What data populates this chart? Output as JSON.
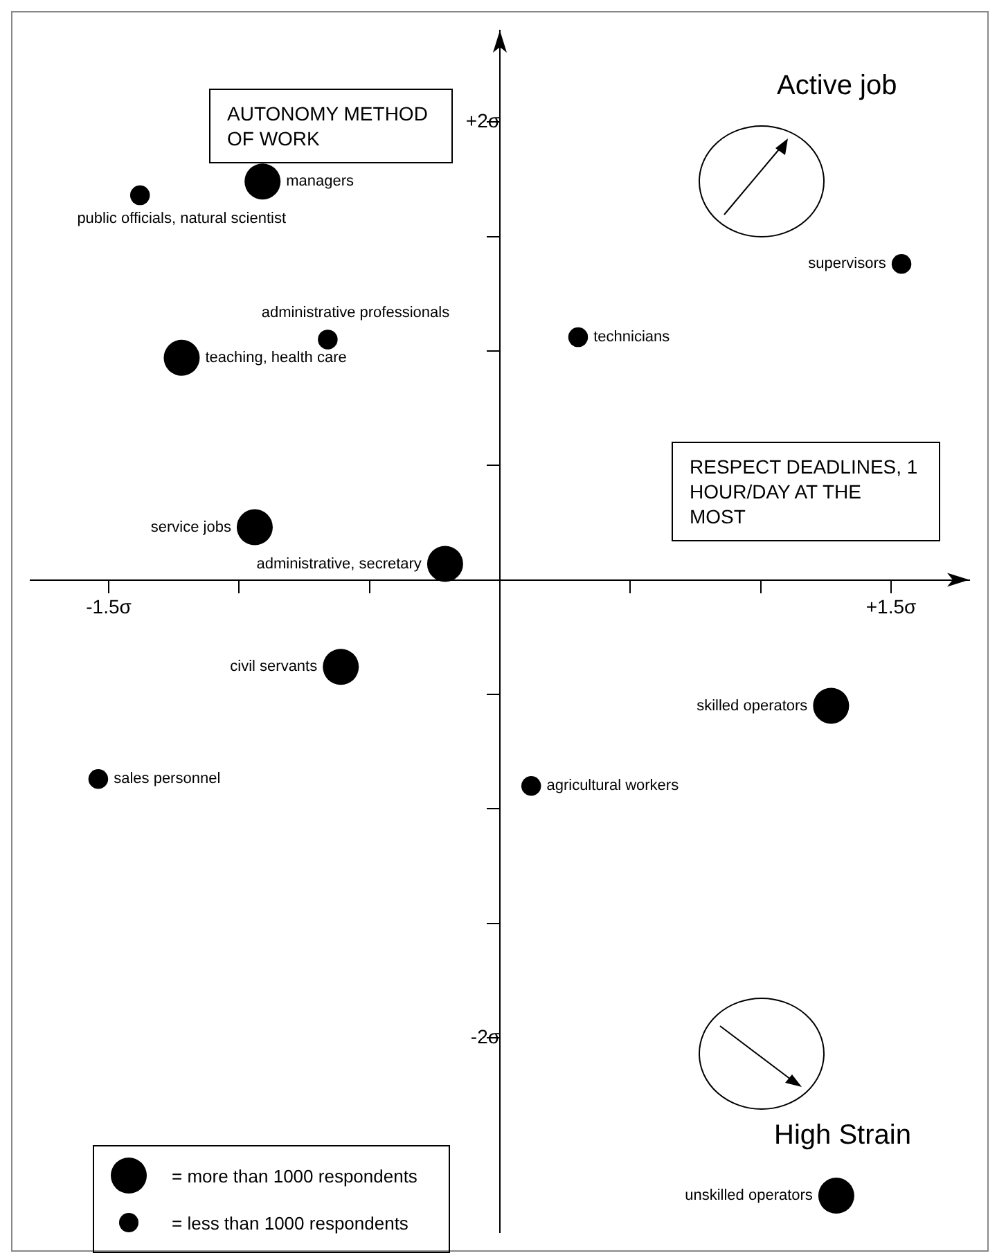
{
  "chart_data": {
    "type": "bubble",
    "xlabel": "RESPECT DEADLINES, 1 HOUR/DAY AT THE MOST",
    "ylabel": "AUTONOMY METHOD OF WORK",
    "x": [
      -0.91,
      -1.38,
      -0.66,
      -1.22,
      0.3,
      1.54,
      -0.94,
      -0.21,
      -0.61,
      1.27,
      -1.54,
      0.12,
      1.29
    ],
    "values": [
      1.74,
      1.68,
      1.05,
      0.97,
      1.06,
      1.38,
      0.23,
      0.07,
      -0.38,
      -0.55,
      -0.87,
      -0.9,
      -2.69
    ],
    "sizes": [
      1,
      0.3,
      0.3,
      1,
      0.3,
      0.3,
      1,
      1,
      1,
      1,
      0.3,
      0.3,
      1
    ],
    "color": "#000000",
    "xlim": [
      -1.8,
      1.8
    ],
    "ylim": [
      -2.85,
      2.4
    ],
    "xticks": [
      {
        "value": -1.5,
        "label": "-1.5σ"
      },
      {
        "value": -1,
        "label": null
      },
      {
        "value": -0.5,
        "label": null
      },
      {
        "value": 0.5,
        "label": null
      },
      {
        "value": 1,
        "label": null
      },
      {
        "value": 1.5,
        "label": "+1.5σ"
      }
    ],
    "yticks": [
      {
        "value": -2,
        "label": "-2σ"
      },
      {
        "value": -1.5,
        "label": null
      },
      {
        "value": -1,
        "label": null
      },
      {
        "value": -0.5,
        "label": null
      },
      {
        "value": 0.5,
        "label": null
      },
      {
        "value": 1,
        "label": null
      },
      {
        "value": 1.5,
        "label": null
      },
      {
        "value": 2,
        "label": "+2σ"
      }
    ],
    "size_legend": [
      {
        "value": 1,
        "label": "= more than 1000 respondents"
      },
      {
        "value": 0.3,
        "label": "= less than 1000 respondents"
      }
    ],
    "grid": false,
    "annotations": [
      {
        "text": "managers",
        "x": -0.91,
        "y": 1.74
      },
      {
        "text": "public officials, natural scientist",
        "x": -1.38,
        "y": 1.68
      },
      {
        "text": "administrative professionals",
        "x": -0.66,
        "y": 1.05
      },
      {
        "text": "teaching, health care",
        "x": -1.22,
        "y": 0.97
      },
      {
        "text": "technicians",
        "x": 0.3,
        "y": 1.06
      },
      {
        "text": "supervisors",
        "x": 1.54,
        "y": 1.38
      },
      {
        "text": "service jobs",
        "x": -0.94,
        "y": 0.23
      },
      {
        "text": "administrative, secretary",
        "x": -0.21,
        "y": 0.07
      },
      {
        "text": "civil servants",
        "x": -0.61,
        "y": -0.38
      },
      {
        "text": "skilled operators",
        "x": 1.27,
        "y": -0.55
      },
      {
        "text": "sales personnel",
        "x": -1.54,
        "y": -0.87
      },
      {
        "text": "agricultural workers",
        "x": 0.12,
        "y": -0.9
      },
      {
        "text": "unskilled operators",
        "x": 1.29,
        "y": -2.69
      },
      "Active job",
      "High Strain"
    ]
  }
}
